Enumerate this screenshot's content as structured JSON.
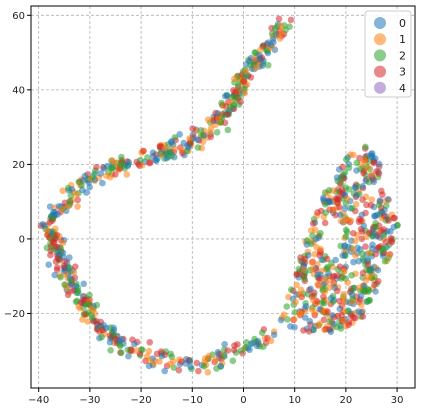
{
  "chart_data": {
    "type": "scatter",
    "title": "",
    "xlabel": "",
    "ylabel": "",
    "xlim": [
      -41.5,
      33.5
    ],
    "ylim": [
      -40,
      62.5
    ],
    "xticks": [
      -40,
      -30,
      -20,
      -10,
      0,
      10,
      20,
      30
    ],
    "yticks": [
      -20,
      0,
      20,
      40,
      60
    ],
    "grid": true,
    "grid_style": "dashed",
    "legend_position": "top-right",
    "marker_alpha": 0.55,
    "series": [
      {
        "name": "0",
        "color": "#1f77b4"
      },
      {
        "name": "1",
        "color": "#ff7f0e"
      },
      {
        "name": "2",
        "color": "#2ca02c"
      },
      {
        "name": "3",
        "color": "#d62728"
      },
      {
        "name": "4",
        "color": "#9467bd"
      }
    ],
    "path": [
      [
        8.5,
        56.5
      ],
      [
        7,
        54.5
      ],
      [
        5,
        51.5
      ],
      [
        3,
        48.5
      ],
      [
        1.5,
        45.5
      ],
      [
        0,
        42.5
      ],
      [
        -1.5,
        39.5
      ],
      [
        -3,
        36
      ],
      [
        -4,
        33
      ],
      [
        -6,
        30
      ],
      [
        -8,
        28
      ],
      [
        -10,
        26
      ],
      [
        -12,
        25
      ],
      [
        -15,
        23.5
      ],
      [
        -18,
        22
      ],
      [
        -20.5,
        21
      ],
      [
        -23,
        20
      ],
      [
        -26,
        18.5
      ],
      [
        -29,
        17
      ],
      [
        -31,
        15
      ],
      [
        -33,
        12
      ],
      [
        -35,
        9
      ],
      [
        -37,
        6
      ],
      [
        -38,
        3
      ],
      [
        -37,
        -1
      ],
      [
        -36,
        -4
      ],
      [
        -35,
        -8
      ],
      [
        -33,
        -13
      ],
      [
        -31,
        -18
      ],
      [
        -29,
        -22
      ],
      [
        -27,
        -25
      ],
      [
        -24,
        -28
      ],
      [
        -21,
        -30
      ],
      [
        -18,
        -31.5
      ],
      [
        -15,
        -32.5
      ],
      [
        -12,
        -33.5
      ],
      [
        -9,
        -34
      ],
      [
        -6,
        -33
      ],
      [
        -3,
        -31
      ],
      [
        0,
        -29
      ],
      [
        3,
        -28
      ],
      [
        6,
        -26
      ]
    ],
    "blob_polygon": [
      [
        22,
        26
      ],
      [
        25,
        24
      ],
      [
        27,
        19
      ],
      [
        28,
        13
      ],
      [
        29,
        8
      ],
      [
        30.5,
        2
      ],
      [
        29,
        -3
      ],
      [
        27.5,
        -8
      ],
      [
        26,
        -14
      ],
      [
        24,
        -20
      ],
      [
        21,
        -24
      ],
      [
        16,
        -25.5
      ],
      [
        10,
        -24.5
      ],
      [
        7,
        -22
      ],
      [
        8,
        -16
      ],
      [
        9,
        -11
      ],
      [
        11,
        -5
      ],
      [
        12,
        0
      ],
      [
        13.5,
        5
      ],
      [
        15,
        10
      ],
      [
        16,
        14
      ],
      [
        18,
        18
      ],
      [
        19.5,
        22
      ]
    ],
    "blob_inner_polygon": [
      [
        15.5,
        3
      ],
      [
        19,
        6
      ],
      [
        18.5,
        -5
      ],
      [
        14,
        -2
      ]
    ],
    "point_counts": {
      "path": 640,
      "blob": 560
    }
  }
}
